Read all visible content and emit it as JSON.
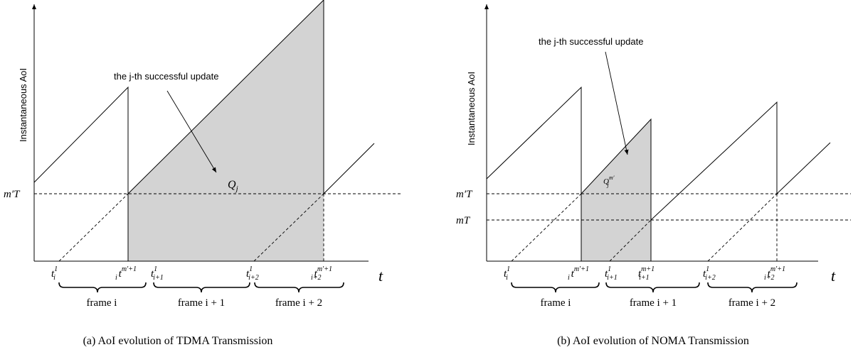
{
  "panel_a": {
    "caption": "(a) AoI evolution of TDMA Transmission",
    "y_axis_label": "Instantaneous AoI",
    "x_axis_label": "t",
    "level_label": "m′T",
    "annotation": "the j-th successful update",
    "area_label": "Q",
    "area_label_sub": "j",
    "ticks": [
      {
        "base": "t",
        "sub": "i",
        "sup": "1"
      },
      {
        "base": "t",
        "sub": "i",
        "sup": "m′+1"
      },
      {
        "base": "t",
        "sub": "i+1",
        "sup": "1"
      },
      {
        "base": "t",
        "sub": "i+2",
        "sup": "1"
      },
      {
        "base": "t",
        "sub": "i+2",
        "sup": "m′+1"
      }
    ],
    "frames": [
      "frame i",
      "frame i + 1",
      "frame i + 2"
    ]
  },
  "panel_b": {
    "caption": "(b) AoI evolution of NOMA Transmission",
    "y_axis_label": "Instantaneous AoI",
    "x_axis_label": "t",
    "level_labels": [
      "m′T",
      "mT"
    ],
    "annotation": "the j-th successful update",
    "area_label": "Q",
    "area_label_sub": "j",
    "area_label_sup": "m′",
    "ticks": [
      {
        "base": "t",
        "sub": "i",
        "sup": "1"
      },
      {
        "base": "t",
        "sub": "i",
        "sup": "m′+1"
      },
      {
        "base": "t",
        "sub": "i+1",
        "sup": "1"
      },
      {
        "base": "t",
        "sub": "i+1",
        "sup": "m+1"
      },
      {
        "base": "t",
        "sub": "i+2",
        "sup": "1"
      },
      {
        "base": "t",
        "sub": "i+2",
        "sup": "m′+1"
      }
    ],
    "frames": [
      "frame i",
      "frame i + 1",
      "frame i + 2"
    ]
  }
}
